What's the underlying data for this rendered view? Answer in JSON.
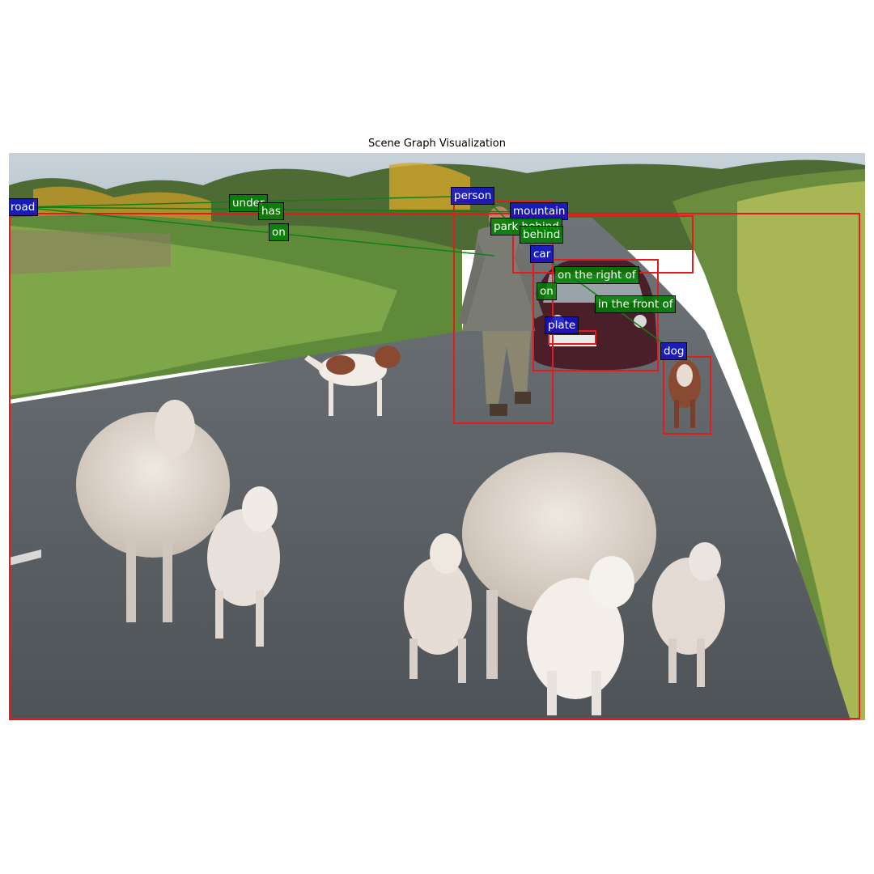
{
  "figure": {
    "title": "Scene Graph Visualization"
  },
  "colors": {
    "box_stroke": "#e31b1b",
    "object_label_bg": "#1414c8",
    "relation_label_bg": "#108010",
    "edge": "#108010"
  },
  "objects": [
    {
      "label": "road"
    },
    {
      "label": "person"
    },
    {
      "label": "mountain"
    },
    {
      "label": "car"
    },
    {
      "label": "plate"
    },
    {
      "label": "dog"
    }
  ],
  "relations": [
    {
      "label": "under"
    },
    {
      "label": "has"
    },
    {
      "label": "on"
    },
    {
      "label": "park behind"
    },
    {
      "label": "behind"
    },
    {
      "label": "on the right of"
    },
    {
      "label": "on"
    },
    {
      "label": "in the front of"
    }
  ]
}
